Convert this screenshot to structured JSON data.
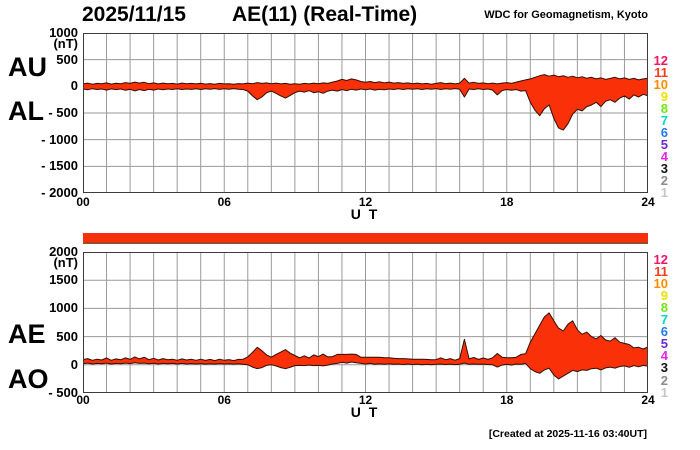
{
  "header": {
    "date": "2025/11/15",
    "title": "AE(11) (Real-Time)",
    "credit": "WDC for Geomagnetism, Kyoto"
  },
  "footer": {
    "created": "[Created at 2025-11-16 03:40UT]"
  },
  "colors": {
    "grid": "#9a9a9a",
    "border": "#3c3c3c",
    "fill": "#f93008",
    "outline": "#2d1002",
    "bar": "#f8300a",
    "bar_edge": "#9c4a30"
  },
  "station_legend": {
    "labels": [
      "12",
      "11",
      "10",
      "9",
      "8",
      "7",
      "6",
      "5",
      "4",
      "3",
      "2",
      "1"
    ],
    "colors": [
      "#ee1466",
      "#f8391c",
      "#ff8c00",
      "#eee200",
      "#74e414",
      "#00d8c8",
      "#2478f0",
      "#6a28d8",
      "#ee22ee",
      "#141414",
      "#8a8a8a",
      "#c6c6c6"
    ]
  },
  "chart_data": [
    {
      "type": "area",
      "name": "AU-AL",
      "side_labels": [
        "AU",
        "AL"
      ],
      "ylabel_unit": "(nT)",
      "xlabel": "U T",
      "ylim": [
        -2000,
        1000
      ],
      "yticks": [
        1000,
        500,
        0,
        -500,
        -1000,
        -1500,
        -2000
      ],
      "ytick_labels": [
        "1000",
        "500",
        "0",
        "- 500",
        "- 1000",
        "- 1500",
        "- 2000"
      ],
      "xticks": [
        "00",
        "06",
        "12",
        "18",
        "24"
      ],
      "xtick_hours": [
        0,
        6,
        12,
        18,
        24
      ],
      "x_range": [
        0,
        24
      ],
      "x_step": 0.2,
      "series": [
        {
          "name": "AU",
          "values": [
            45,
            60,
            40,
            55,
            48,
            65,
            42,
            58,
            50,
            70,
            55,
            80,
            60,
            75,
            50,
            65,
            45,
            60,
            50,
            55,
            42,
            60,
            48,
            55,
            45,
            58,
            42,
            52,
            40,
            55,
            45,
            50,
            40,
            52,
            45,
            60,
            50,
            70,
            55,
            65,
            50,
            60,
            45,
            55,
            40,
            50,
            40,
            55,
            45,
            60,
            50,
            65,
            55,
            80,
            100,
            130,
            110,
            140,
            120,
            90,
            75,
            90,
            70,
            85,
            65,
            80,
            60,
            70,
            55,
            65,
            50,
            60,
            45,
            55,
            40,
            55,
            70,
            50,
            60,
            45,
            60,
            150,
            60,
            75,
            55,
            65,
            50,
            60,
            45,
            60,
            70,
            55,
            80,
            100,
            120,
            140,
            170,
            200,
            220,
            190,
            210,
            180,
            200,
            170,
            190,
            160,
            180,
            150,
            170,
            140,
            160,
            130,
            150,
            170,
            140,
            160,
            130,
            150,
            120,
            140,
            150
          ]
        },
        {
          "name": "AL",
          "values": [
            -50,
            -65,
            -45,
            -60,
            -50,
            -70,
            -48,
            -62,
            -50,
            -75,
            -55,
            -85,
            -60,
            -80,
            -55,
            -70,
            -50,
            -65,
            -50,
            -60,
            -45,
            -60,
            -50,
            -58,
            -45,
            -60,
            -45,
            -55,
            -42,
            -58,
            -45,
            -55,
            -42,
            -55,
            -60,
            -90,
            -180,
            -250,
            -200,
            -120,
            -90,
            -130,
            -180,
            -220,
            -170,
            -120,
            -90,
            -110,
            -80,
            -120,
            -100,
            -130,
            -90,
            -70,
            -90,
            -60,
            -80,
            -55,
            -70,
            -50,
            -65,
            -50,
            -70,
            -55,
            -65,
            -50,
            -60,
            -45,
            -60,
            -45,
            -55,
            -45,
            -60,
            -45,
            -55,
            -42,
            -60,
            -45,
            -55,
            -42,
            -55,
            -200,
            -50,
            -60,
            -45,
            -60,
            -50,
            -70,
            -160,
            -80,
            -60,
            -75,
            -60,
            -90,
            -80,
            -300,
            -450,
            -550,
            -420,
            -350,
            -600,
            -780,
            -820,
            -700,
            -520,
            -430,
            -460,
            -380,
            -350,
            -300,
            -380,
            -280,
            -250,
            -300,
            -220,
            -180,
            -240,
            -160,
            -200,
            -150,
            -180
          ]
        }
      ]
    },
    {
      "type": "area",
      "name": "AE-AO",
      "side_labels": [
        "AE",
        "AO"
      ],
      "ylabel_unit": "(nT)",
      "xlabel": "U T",
      "ylim": [
        -500,
        2000
      ],
      "yticks": [
        2000,
        1500,
        1000,
        500,
        0,
        -500
      ],
      "ytick_labels": [
        "2000",
        "1500",
        "1000",
        "500",
        "0",
        "- 500"
      ],
      "xticks": [
        "00",
        "06",
        "12",
        "18",
        "24"
      ],
      "xtick_hours": [
        0,
        6,
        12,
        18,
        24
      ],
      "x_range": [
        0,
        24
      ],
      "x_step": 0.2,
      "series": [
        {
          "name": "AE",
          "values": [
            90,
            110,
            80,
            100,
            85,
            120,
            80,
            105,
            88,
            125,
            95,
            140,
            105,
            135,
            90,
            115,
            85,
            110,
            90,
            100,
            80,
            105,
            85,
            100,
            80,
            100,
            78,
            95,
            75,
            100,
            80,
            92,
            75,
            95,
            100,
            140,
            220,
            310,
            250,
            175,
            135,
            185,
            225,
            270,
            205,
            165,
            125,
            160,
            120,
            175,
            145,
            190,
            140,
            145,
            185,
            185,
            185,
            190,
            185,
            135,
            135,
            135,
            135,
            135,
            125,
            125,
            115,
            110,
            110,
            105,
            100,
            100,
            100,
            95,
            90,
            92,
            125,
            90,
            110,
            82,
            110,
            450,
            105,
            130,
            95,
            120,
            95,
            125,
            200,
            135,
            125,
            125,
            135,
            185,
            195,
            400,
            550,
            700,
            850,
            920,
            780,
            650,
            600,
            720,
            780,
            620,
            540,
            580,
            500,
            460,
            520,
            440,
            420,
            480,
            400,
            380,
            360,
            300,
            310,
            280,
            320
          ]
        },
        {
          "name": "AO",
          "values": [
            20,
            30,
            15,
            25,
            18,
            30,
            15,
            25,
            20,
            30,
            22,
            35,
            25,
            30,
            18,
            28,
            15,
            25,
            18,
            25,
            15,
            25,
            15,
            22,
            15,
            22,
            12,
            20,
            12,
            22,
            15,
            20,
            12,
            20,
            10,
            0,
            -40,
            -70,
            -50,
            -10,
            0,
            -20,
            -50,
            -70,
            -45,
            -15,
            -10,
            -15,
            -5,
            -15,
            -10,
            -20,
            -5,
            15,
            25,
            45,
            30,
            50,
            35,
            25,
            15,
            25,
            10,
            20,
            8,
            20,
            8,
            15,
            5,
            15,
            5,
            12,
            0,
            10,
            0,
            10,
            15,
            5,
            12,
            4,
            10,
            30,
            8,
            15,
            8,
            12,
            5,
            0,
            -40,
            -5,
            10,
            -5,
            15,
            10,
            25,
            -70,
            -120,
            -150,
            -90,
            -60,
            -180,
            -250,
            -200,
            -150,
            -100,
            -120,
            -90,
            -100,
            -70,
            -60,
            -90,
            -55,
            -40,
            -60,
            -30,
            -20,
            -45,
            -15,
            -35,
            -10,
            -25
          ]
        }
      ]
    }
  ]
}
